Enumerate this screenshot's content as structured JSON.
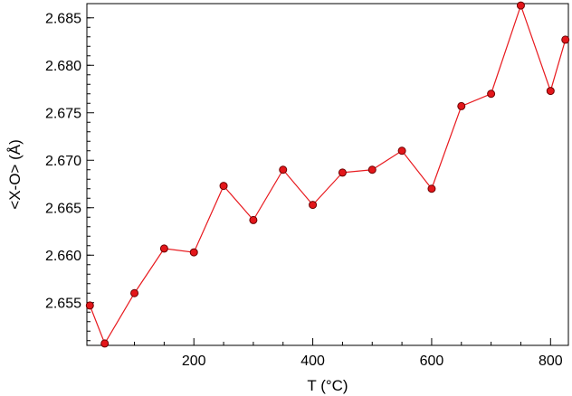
{
  "chart_data": {
    "type": "line",
    "title": "",
    "xlabel": "T (°C)",
    "ylabel": "<X-O> (Å)",
    "xlim": [
      20,
      830
    ],
    "ylim": [
      2.6505,
      2.6865
    ],
    "xticks": [
      200,
      400,
      600,
      800
    ],
    "yticks": [
      2.655,
      2.66,
      2.665,
      2.67,
      2.675,
      2.68,
      2.685
    ],
    "ytick_labels": [
      "2.655",
      "2.660",
      "2.665",
      "2.670",
      "2.675",
      "2.680",
      "2.685"
    ],
    "grid": false,
    "legend": "none",
    "colors": {
      "line": "#e8191e",
      "marker_fill": "#e3161a",
      "marker_edge": "#6b0000",
      "axis": "#000000"
    },
    "series": [
      {
        "x": [
          25,
          50,
          100,
          150,
          200,
          250,
          300,
          350,
          400,
          450,
          500,
          550,
          600,
          650,
          700,
          750,
          800,
          825
        ],
        "y": [
          2.6547,
          2.6507,
          2.656,
          2.6607,
          2.6603,
          2.6673,
          2.6637,
          2.669,
          2.6653,
          2.6687,
          2.669,
          2.671,
          2.667,
          2.6757,
          2.677,
          2.6863,
          2.6773,
          2.6827
        ]
      }
    ]
  }
}
